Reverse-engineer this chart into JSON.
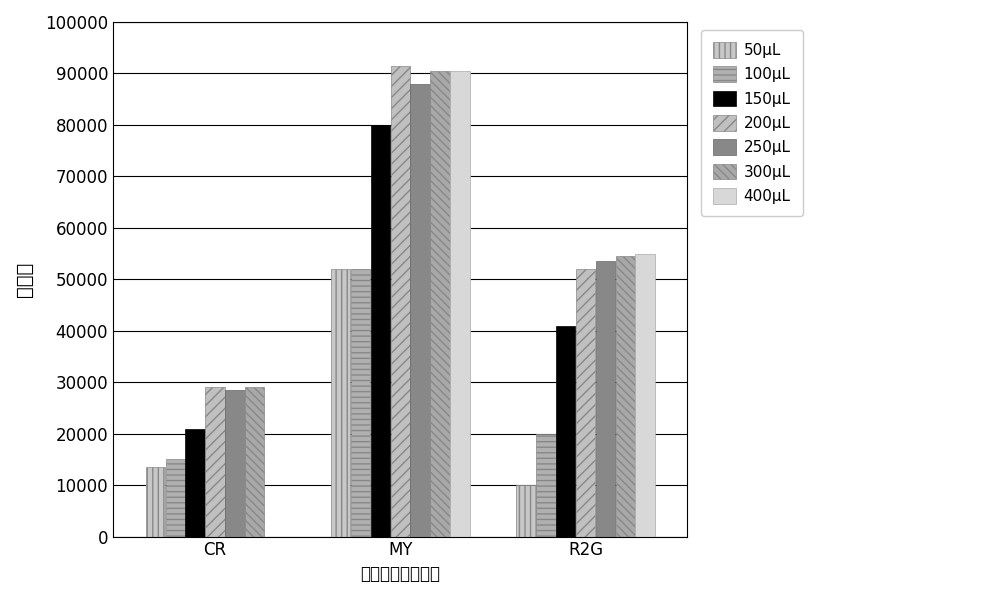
{
  "categories": [
    "CR",
    "MY",
    "R2G"
  ],
  "series_labels": [
    "50μL",
    "100μL",
    "150μL",
    "200μL",
    "250μL",
    "300μL",
    "400μL"
  ],
  "values": {
    "CR": [
      13500,
      15000,
      21000,
      29000,
      28500,
      29000,
      0
    ],
    "MY": [
      52000,
      52000,
      80000,
      91500,
      88000,
      90500,
      90500
    ],
    "R2G": [
      10000,
      20000,
      41000,
      52000,
      53500,
      54500,
      55000
    ]
  },
  "ylabel": "峰面积",
  "xlabel": "非法添加工业染料",
  "ylim": [
    0,
    100000
  ],
  "yticks": [
    0,
    10000,
    20000,
    30000,
    40000,
    50000,
    60000,
    70000,
    80000,
    90000,
    100000
  ],
  "background_color": "#ffffff",
  "legend_fontsize": 11,
  "axis_fontsize": 12,
  "styles": [
    {
      "color": "#c8c8c8",
      "edgecolor": "#888888",
      "hatch": "|||"
    },
    {
      "color": "#b0b0b0",
      "edgecolor": "#888888",
      "hatch": "---"
    },
    {
      "color": "#000000",
      "edgecolor": "#000000",
      "hatch": ""
    },
    {
      "color": "#c0c0c0",
      "edgecolor": "#888888",
      "hatch": "///"
    },
    {
      "color": "#888888",
      "edgecolor": "#666666",
      "hatch": ""
    },
    {
      "color": "#a8a8a8",
      "edgecolor": "#888888",
      "hatch": "\\\\\\\\"
    },
    {
      "color": "#d8d8d8",
      "edgecolor": "#aaaaaa",
      "hatch": ""
    }
  ]
}
